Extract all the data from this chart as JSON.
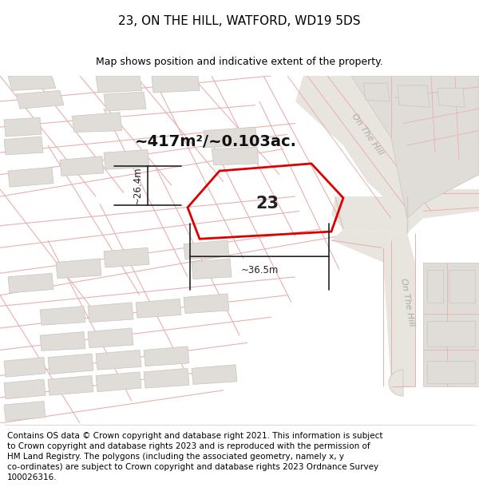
{
  "title": "23, ON THE HILL, WATFORD, WD19 5DS",
  "subtitle": "Map shows position and indicative extent of the property.",
  "footer": "Contains OS data © Crown copyright and database right 2021. This information is subject\nto Crown copyright and database rights 2023 and is reproduced with the permission of\nHM Land Registry. The polygons (including the associated geometry, namely x, y\nco-ordinates) are subject to Crown copyright and database rights 2023 Ordnance Survey\n100026316.",
  "area_text": "~417m²/~0.103ac.",
  "label_23": "23",
  "dim_width": "~36.5m",
  "dim_height": "~26.4m",
  "map_bg": "#f5f3f0",
  "road_fill": "#e8e4de",
  "road_label_color": "#aaaaaa",
  "plot_fill": "none",
  "plot_edge": "#dd0000",
  "building_fill": "#e0ddd8",
  "building_edge": "#c8c5c0",
  "road_line_color": "#e8b0b0",
  "road_curb_color": "#d0ccc5",
  "dim_color": "#222222",
  "title_fontsize": 11,
  "subtitle_fontsize": 9,
  "footer_fontsize": 7.5,
  "area_fontsize": 14
}
